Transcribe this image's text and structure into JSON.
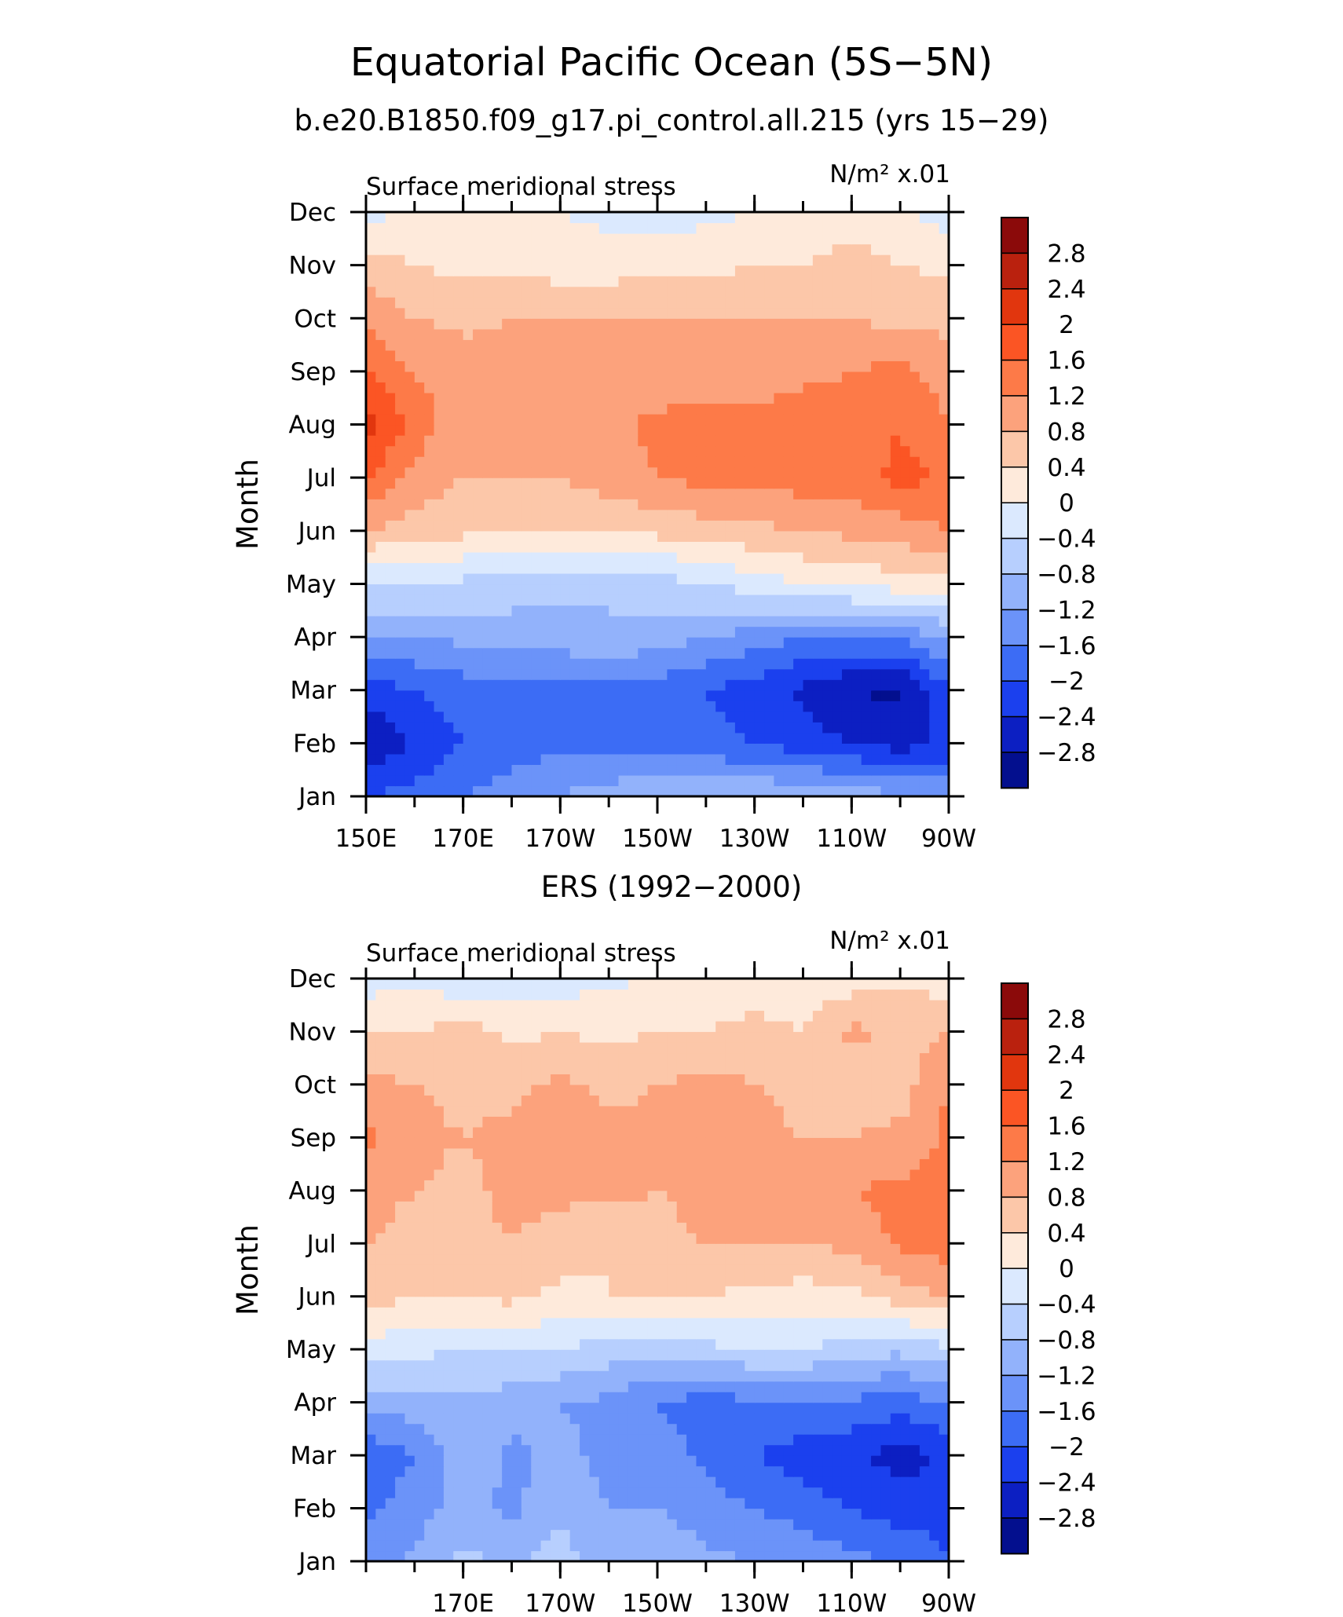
{
  "title": "Equatorial Pacific Ocean (5S−5N)",
  "chart_data": [
    {
      "type": "heatmap",
      "subtitle": "b.e20.B1850.f09_g17.pi_control.all.215 (yrs 15−29)",
      "left_label": "Surface meridional stress",
      "units": "N/m² x.01",
      "ylabel": "Month",
      "xlabel": "",
      "x_ticks": [
        "150E",
        "170E",
        "170W",
        "150W",
        "130W",
        "110W",
        "90W"
      ],
      "y_ticks": [
        "Jan",
        "Feb",
        "Mar",
        "Apr",
        "May",
        "Jun",
        "Jul",
        "Aug",
        "Sep",
        "Oct",
        "Nov",
        "Dec"
      ],
      "x_range": [
        150,
        270
      ],
      "grid_lon": [
        150,
        160,
        170,
        180,
        190,
        200,
        210,
        220,
        230,
        240,
        250,
        260,
        270
      ],
      "values": [
        [
          -2.0,
          -1.8,
          -1.6,
          -1.4,
          -1.2,
          -1.0,
          -0.9,
          -0.8,
          -0.8,
          -0.9,
          -1.0,
          -1.1,
          -1.3
        ],
        [
          -2.8,
          -2.4,
          -2.0,
          -1.8,
          -1.7,
          -1.7,
          -1.8,
          -1.9,
          -2.0,
          -2.2,
          -2.4,
          -2.6,
          -2.3
        ],
        [
          -2.2,
          -2.0,
          -1.8,
          -1.8,
          -1.7,
          -1.7,
          -1.8,
          -2.0,
          -2.2,
          -2.5,
          -2.8,
          -2.9,
          -2.0
        ],
        [
          -1.2,
          -1.2,
          -1.1,
          -1.0,
          -1.0,
          -0.9,
          -1.0,
          -1.2,
          -1.4,
          -1.6,
          -1.6,
          -1.5,
          -1.2
        ],
        [
          -0.4,
          -0.4,
          -0.5,
          -0.6,
          -0.7,
          -0.7,
          -0.6,
          -0.4,
          -0.2,
          0.0,
          0.1,
          0.2,
          0.3
        ],
        [
          0.8,
          0.6,
          0.5,
          0.4,
          0.4,
          0.4,
          0.5,
          0.6,
          0.7,
          0.8,
          0.9,
          1.0,
          1.2
        ],
        [
          1.6,
          1.1,
          0.8,
          0.8,
          0.8,
          1.0,
          1.2,
          1.3,
          1.3,
          1.4,
          1.4,
          1.7,
          1.6
        ],
        [
          2.2,
          1.4,
          1.0,
          1.0,
          1.0,
          1.1,
          1.3,
          1.4,
          1.3,
          1.4,
          1.5,
          1.6,
          1.2
        ],
        [
          1.6,
          1.2,
          1.0,
          1.0,
          0.9,
          0.9,
          0.9,
          1.0,
          1.0,
          1.1,
          1.2,
          1.3,
          1.0
        ],
        [
          1.1,
          0.8,
          0.7,
          0.8,
          0.8,
          0.8,
          0.8,
          0.8,
          0.8,
          0.8,
          0.8,
          0.7,
          0.7
        ],
        [
          0.6,
          0.4,
          0.3,
          0.3,
          0.2,
          0.2,
          0.3,
          0.3,
          0.4,
          0.4,
          0.6,
          0.4,
          0.3
        ],
        [
          -0.2,
          0.1,
          0.2,
          0.1,
          0.0,
          -0.1,
          -0.2,
          -0.1,
          0.0,
          0.1,
          0.2,
          0.1,
          -0.2
        ]
      ]
    },
    {
      "type": "heatmap",
      "subtitle": "ERS (1992−2000)",
      "left_label": "Surface meridional stress",
      "units": "N/m² x.01",
      "ylabel": "Month",
      "xlabel": "",
      "x_ticks": [
        "170E",
        "170W",
        "150W",
        "130W",
        "110W",
        "90W"
      ],
      "y_ticks": [
        "Jan",
        "Feb",
        "Mar",
        "Apr",
        "May",
        "Jun",
        "Jul",
        "Aug",
        "Sep",
        "Oct",
        "Nov",
        "Dec"
      ],
      "x_range": [
        150,
        270
      ],
      "grid_lon": [
        150,
        160,
        170,
        180,
        190,
        200,
        210,
        220,
        230,
        240,
        250,
        260,
        270
      ],
      "values": [
        [
          -1.4,
          -1.1,
          -0.7,
          -0.9,
          -0.6,
          -1.0,
          -0.9,
          -1.1,
          -1.2,
          -1.3,
          -1.5,
          -1.6,
          -2.0
        ],
        [
          -1.7,
          -1.4,
          -1.0,
          -1.3,
          -0.9,
          -1.2,
          -1.2,
          -1.4,
          -1.6,
          -1.8,
          -2.0,
          -2.2,
          -2.2
        ],
        [
          -1.9,
          -1.6,
          -0.9,
          -1.3,
          -1.1,
          -1.3,
          -1.4,
          -1.7,
          -2.0,
          -2.2,
          -2.3,
          -2.6,
          -2.3
        ],
        [
          -1.0,
          -1.0,
          -0.9,
          -1.0,
          -1.2,
          -1.3,
          -1.6,
          -1.8,
          -1.7,
          -1.6,
          -1.7,
          -1.8,
          -1.6
        ],
        [
          -0.2,
          -0.3,
          -0.4,
          -0.4,
          -0.4,
          -0.6,
          -0.7,
          -0.5,
          -0.4,
          -0.4,
          -0.6,
          -0.7,
          -0.5
        ],
        [
          0.6,
          0.4,
          0.4,
          0.5,
          0.3,
          0.4,
          0.5,
          0.4,
          0.3,
          0.2,
          0.3,
          0.6,
          0.8
        ],
        [
          0.8,
          0.7,
          0.7,
          0.8,
          0.6,
          0.4,
          0.7,
          0.8,
          0.8,
          0.8,
          0.9,
          1.3,
          1.4
        ],
        [
          0.9,
          0.8,
          0.7,
          0.9,
          0.9,
          0.9,
          0.8,
          0.9,
          0.9,
          0.8,
          1.2,
          1.3,
          1.4
        ],
        [
          1.3,
          0.9,
          0.8,
          0.9,
          1.0,
          0.9,
          0.9,
          0.9,
          0.9,
          0.8,
          0.8,
          0.9,
          1.3
        ],
        [
          0.9,
          0.8,
          0.7,
          0.7,
          0.9,
          0.7,
          0.8,
          0.9,
          0.8,
          0.7,
          0.6,
          0.6,
          1.2
        ],
        [
          0.4,
          0.4,
          0.6,
          0.3,
          0.4,
          0.3,
          0.4,
          0.4,
          0.6,
          0.4,
          0.9,
          0.7,
          0.8
        ],
        [
          -0.2,
          -0.1,
          -0.3,
          -0.2,
          -0.2,
          -0.1,
          0.1,
          0.1,
          0.0,
          0.2,
          0.2,
          0.3,
          0.2
        ]
      ]
    }
  ],
  "colorbar": {
    "labels": [
      "2.8",
      "2.4",
      "2",
      "1.6",
      "1.2",
      "0.8",
      "0.4",
      "0",
      "−0.4",
      "−0.8",
      "−1.2",
      "−1.6",
      "−2",
      "−2.4",
      "−2.8"
    ],
    "levels": [
      2.8,
      2.4,
      2.0,
      1.6,
      1.2,
      0.8,
      0.4,
      0.0,
      -0.4,
      -0.8,
      -1.2,
      -1.6,
      -2.0,
      -2.4,
      -2.8
    ],
    "colors_top_to_bottom": [
      "#8b0a0a",
      "#ba210e",
      "#e1360e",
      "#fb5524",
      "#fd7a48",
      "#fca27c",
      "#fcc7a9",
      "#feeadb",
      "#dbe9fe",
      "#b7cffe",
      "#92b2fb",
      "#6b93f9",
      "#3c6cf5",
      "#1b40ee",
      "#0c1fc2",
      "#030f8e"
    ]
  }
}
